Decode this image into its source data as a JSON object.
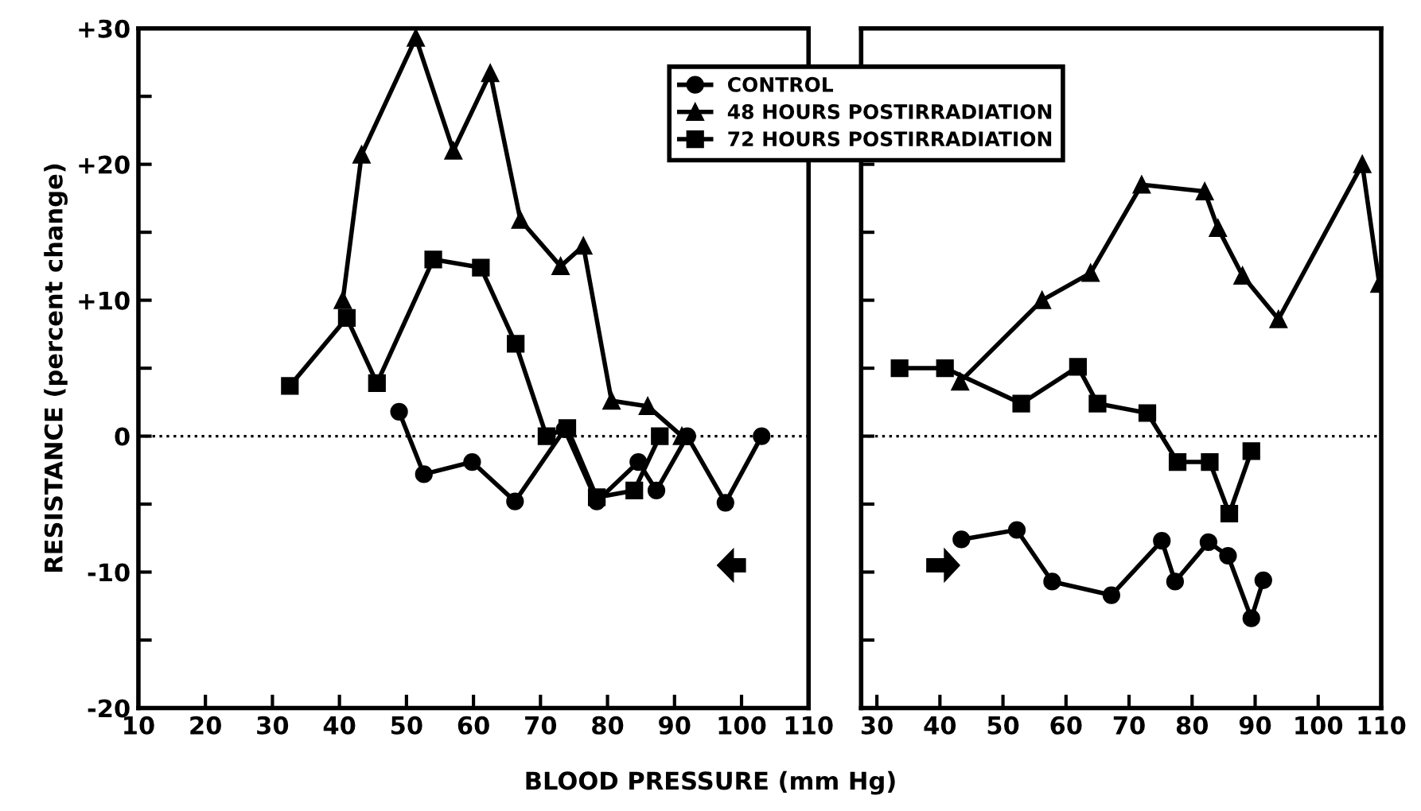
{
  "chart_data": [
    {
      "type": "line",
      "ylabel": "RESISTANCE (percent change)",
      "xlabel": "BLOOD PRESSURE (mm Hg)",
      "xlim": [
        10,
        110
      ],
      "xticks": [
        10,
        20,
        30,
        40,
        50,
        60,
        70,
        80,
        90,
        100,
        110
      ],
      "ylim": [
        -20,
        30
      ],
      "yticks": [
        {
          "value": -20,
          "label": "-20"
        },
        {
          "value": -15,
          "label": null
        },
        {
          "value": -10,
          "label": "-10"
        },
        {
          "value": -5,
          "label": null
        },
        0,
        {
          "value": 5,
          "label": null
        },
        {
          "value": 10,
          "label": "+10"
        },
        {
          "value": 15,
          "label": null
        },
        {
          "value": 20,
          "label": "+20"
        },
        {
          "value": 25,
          "label": null
        },
        {
          "value": 30,
          "label": "+30"
        }
      ],
      "legend": "top right",
      "grid": false,
      "line_style": "solid",
      "ref_lines": [
        {
          "axis": "y",
          "value": 0,
          "line_style": "dotted",
          "color": "#000000"
        }
      ],
      "series": [
        {
          "name": "CONTROL",
          "color": "#000000",
          "marker": "circle",
          "x": [
            48.9,
            52.6,
            59.8,
            66.2,
            73.6,
            78.4,
            84.6,
            87.3,
            91.9,
            97.6,
            103
          ],
          "values": [
            1.8,
            -2.8,
            -1.9,
            -4.8,
            0.5,
            -4.8,
            -1.9,
            -4,
            0,
            -4.9,
            0
          ]
        },
        {
          "name": "48 HOURS POSTIRRADIATION",
          "color": "#000000",
          "marker": "triangle",
          "x": [
            40.5,
            43.3,
            51.4,
            57,
            62.5,
            67,
            73,
            76.4,
            80.6,
            86,
            91.1
          ],
          "values": [
            10,
            20.7,
            29.3,
            21,
            26.7,
            15.9,
            12.5,
            14,
            2.6,
            2.2,
            0
          ]
        },
        {
          "name": "72 HOURS POSTIRRADIATION",
          "color": "#000000",
          "marker": "square",
          "x": [
            32.6,
            41.1,
            45.6,
            54,
            61.1,
            66.3,
            70.9,
            74,
            78.4,
            84,
            87.8
          ],
          "values": [
            3.7,
            8.7,
            3.9,
            13,
            12.4,
            6.8,
            0,
            0.6,
            -4.5,
            -4,
            0
          ]
        }
      ]
    },
    {
      "type": "line",
      "tick_labels": "x",
      "xlim": [
        27.5,
        110
      ],
      "xticks": [
        30,
        40,
        50,
        60,
        70,
        80,
        90,
        100,
        110
      ],
      "ylim": [
        -20,
        30
      ],
      "yticks": [
        {
          "value": -20,
          "label": null
        },
        {
          "value": -15,
          "label": null
        },
        {
          "value": -10,
          "label": null
        },
        {
          "value": -5,
          "label": null
        },
        {
          "value": 0,
          "label": null
        },
        {
          "value": 5,
          "label": null
        },
        {
          "value": 10,
          "label": null
        },
        {
          "value": 15,
          "label": null
        },
        {
          "value": 20,
          "label": null
        },
        {
          "value": 25,
          "label": null
        },
        {
          "value": 30,
          "label": null
        }
      ],
      "grid": false,
      "line_style": "solid",
      "ref_lines": [
        {
          "axis": "y",
          "value": 0,
          "line_style": "dotted",
          "color": "#000000"
        }
      ],
      "series": [
        {
          "color": "#000000",
          "marker": "circle",
          "x": [
            43.4,
            52.2,
            57.8,
            67.2,
            75.2,
            77.3,
            82.6,
            85.7,
            89.4,
            91.3
          ],
          "values": [
            -7.6,
            -6.9,
            -10.7,
            -11.7,
            -7.7,
            -10.7,
            -7.8,
            -8.8,
            -13.4,
            -10.6
          ]
        },
        {
          "color": "#000000",
          "marker": "triangle",
          "x": [
            43.2,
            56.2,
            63.9,
            72,
            82,
            84.1,
            88,
            93.7,
            107,
            109.7
          ],
          "values": [
            4,
            10,
            12,
            18.5,
            18,
            15.3,
            11.8,
            8.6,
            20,
            11.2
          ]
        },
        {
          "color": "#000000",
          "marker": "square",
          "x": [
            33.6,
            40.8,
            52.9,
            61.9,
            65,
            72.9,
            77.7,
            82.8,
            85.9,
            89.4
          ],
          "values": [
            5,
            5,
            2.4,
            5.1,
            2.4,
            1.7,
            -1.9,
            -1.9,
            -5.7,
            -1.1
          ]
        }
      ]
    }
  ]
}
